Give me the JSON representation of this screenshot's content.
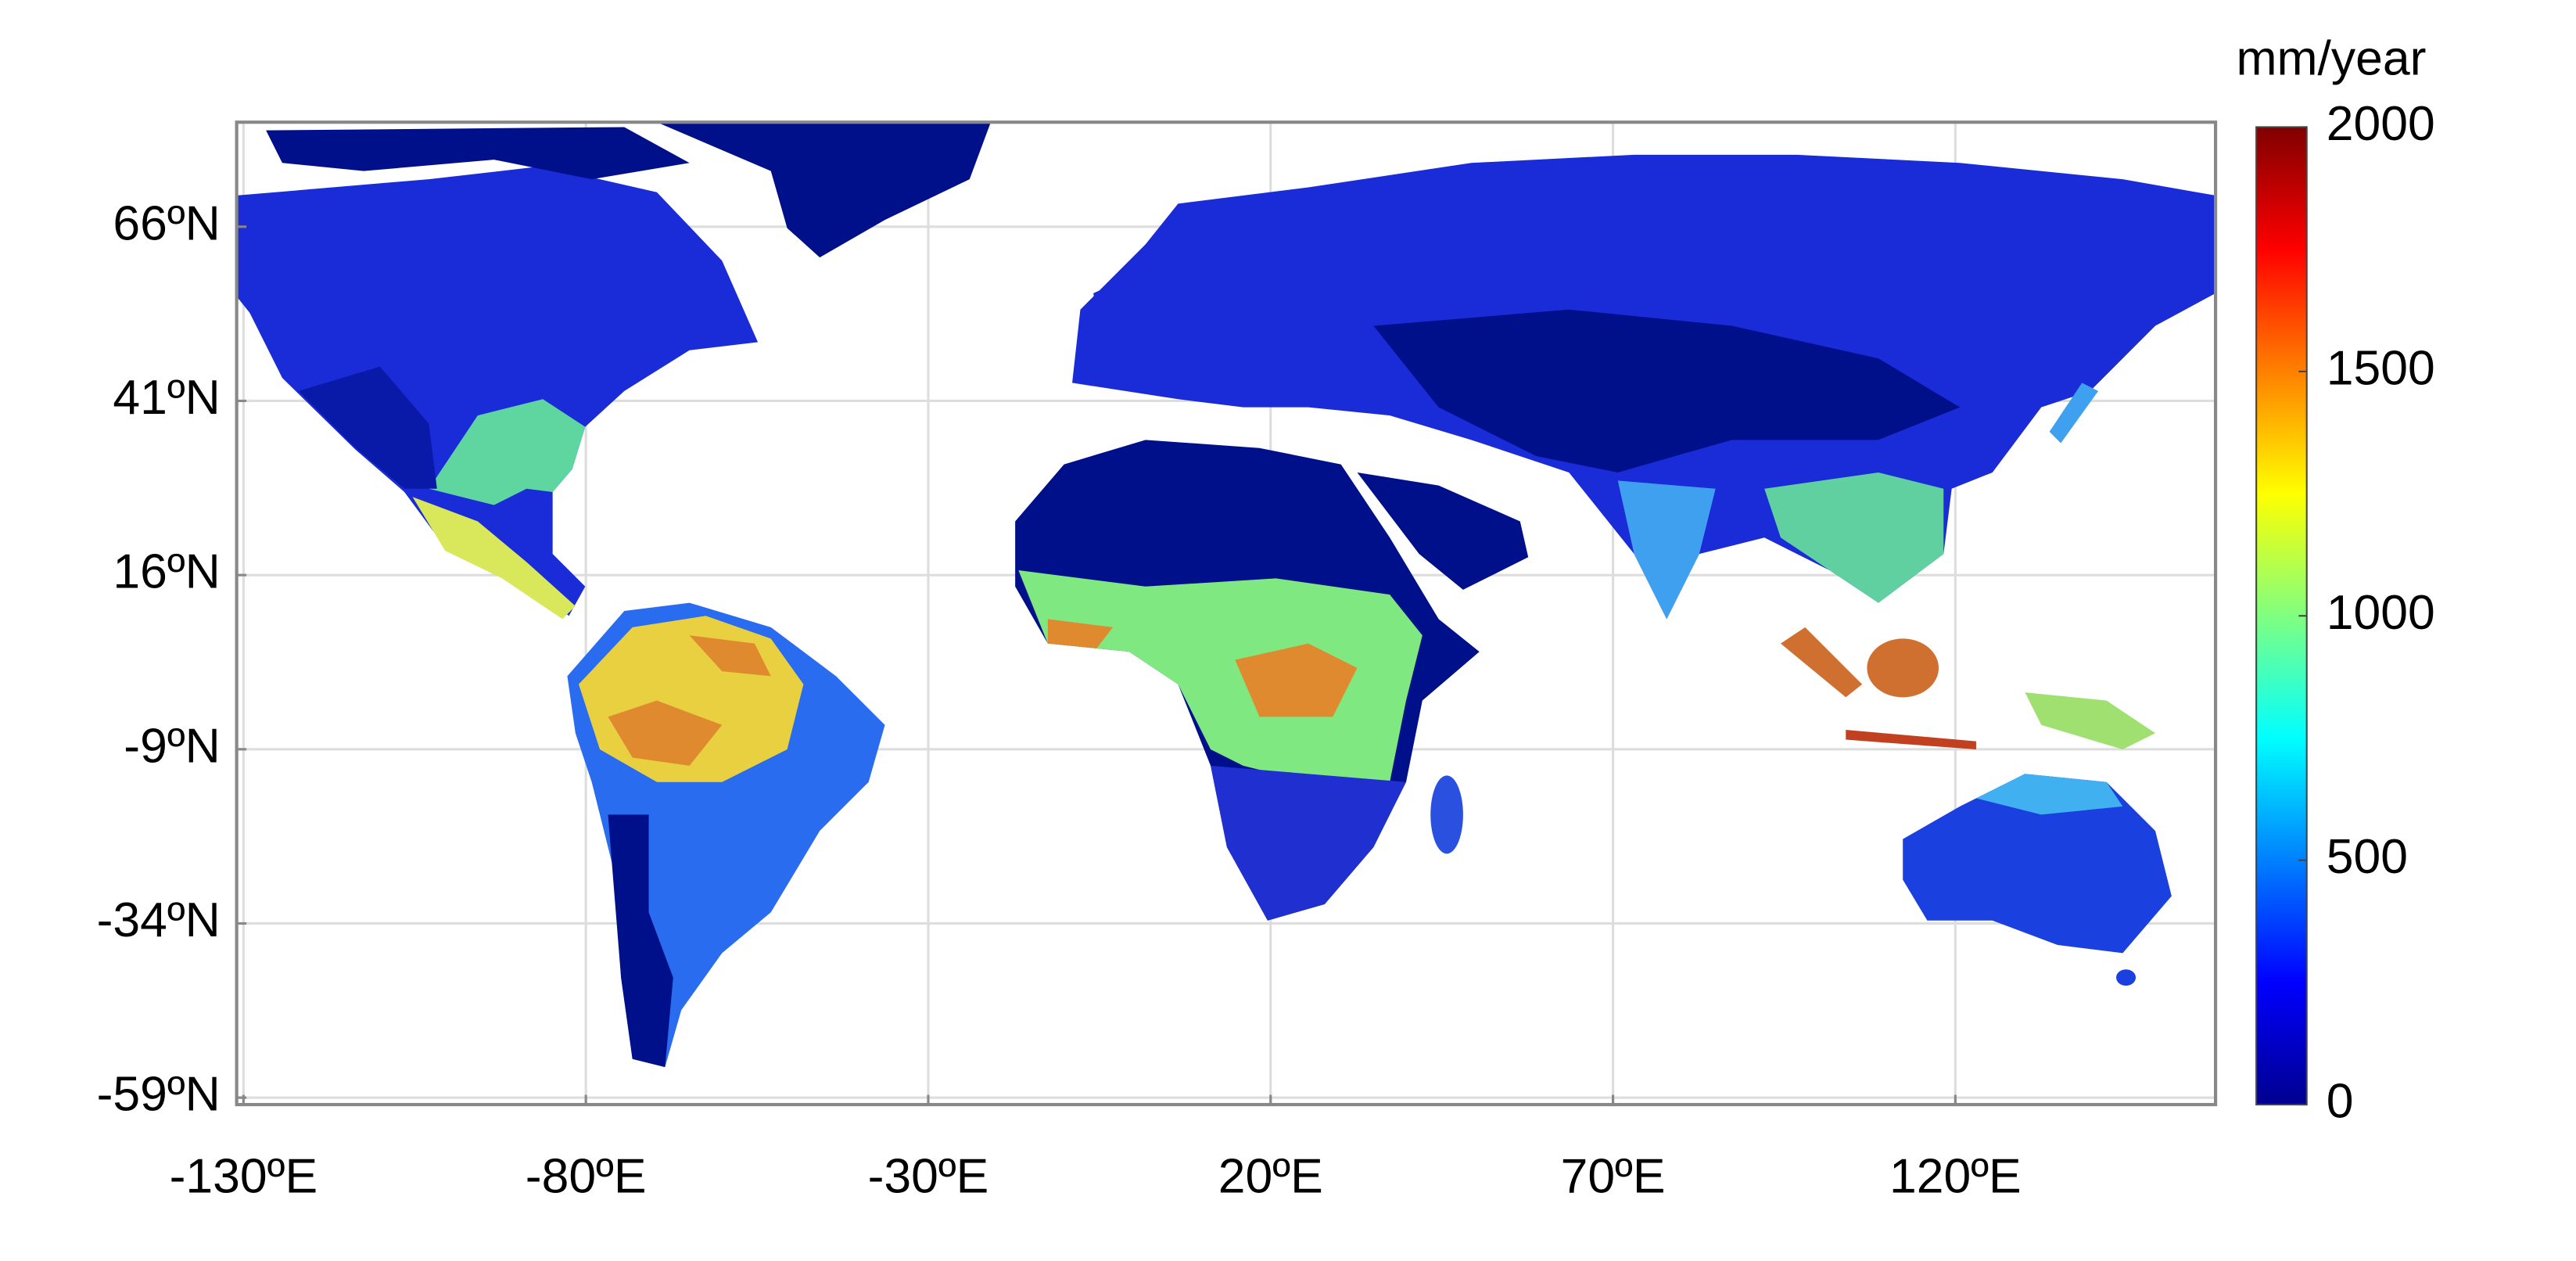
{
  "map": {
    "unit_label": "mm/year",
    "xlim": [
      -131,
      158
    ],
    "ylim": [
      -60,
      81
    ],
    "xticks": [
      {
        "value": -130,
        "label": "-130ºE"
      },
      {
        "value": -80,
        "label": "-80ºE"
      },
      {
        "value": -30,
        "label": "-30ºE"
      },
      {
        "value": 20,
        "label": "20ºE"
      },
      {
        "value": 70,
        "label": "70ºE"
      },
      {
        "value": 120,
        "label": "120ºE"
      }
    ],
    "yticks": [
      {
        "value": 66,
        "label": "66ºN"
      },
      {
        "value": 41,
        "label": "41ºN"
      },
      {
        "value": 16,
        "label": "16ºN"
      },
      {
        "value": -9,
        "label": "-9ºN"
      },
      {
        "value": -34,
        "label": "-34ºN"
      },
      {
        "value": -59,
        "label": "-59ºN"
      }
    ],
    "grid": true,
    "colorbar": {
      "lim": [
        0,
        2000
      ],
      "ticks": [
        0,
        500,
        1000,
        1500,
        2000
      ],
      "colors": [
        "#00008f",
        "#0000ff",
        "#0080ff",
        "#00ffff",
        "#80ff80",
        "#ffff00",
        "#ff8000",
        "#ff0000",
        "#800000"
      ]
    }
  }
}
